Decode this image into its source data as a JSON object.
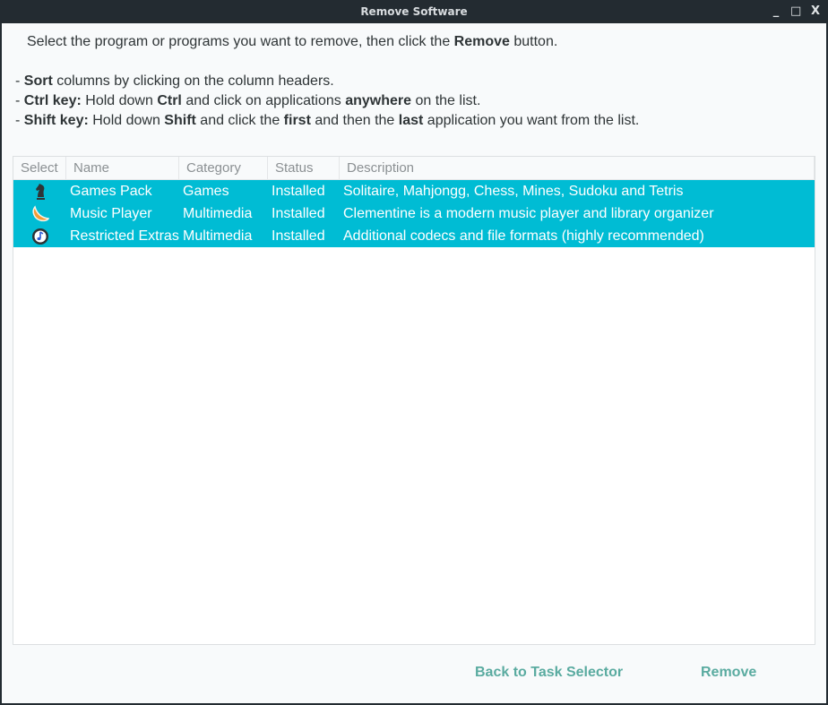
{
  "window": {
    "title": "Remove Software",
    "controls": {
      "minimize": "_",
      "maximize": "□",
      "close": "X"
    }
  },
  "intro": {
    "before": "Select the program or programs you want to remove, then click the ",
    "bold": "Remove",
    "after": " button."
  },
  "rules": [
    {
      "parts": [
        {
          "t": "- "
        },
        {
          "b": "Sort"
        },
        {
          "t": " columns by clicking on the column headers."
        }
      ]
    },
    {
      "parts": [
        {
          "t": "- "
        },
        {
          "b": "Ctrl key:"
        },
        {
          "t": " Hold down "
        },
        {
          "b": "Ctrl"
        },
        {
          "t": " and click on applications "
        },
        {
          "b": "anywhere"
        },
        {
          "t": " on the list."
        }
      ]
    },
    {
      "parts": [
        {
          "t": "- "
        },
        {
          "b": "Shift key:"
        },
        {
          "t": " Hold down "
        },
        {
          "b": "Shift"
        },
        {
          "t": " and click the "
        },
        {
          "b": "first"
        },
        {
          "t": " and then the "
        },
        {
          "b": "last"
        },
        {
          "t": " application you want from the list."
        }
      ]
    }
  ],
  "table": {
    "columns": [
      "Select",
      "Name",
      "Category",
      "Status",
      "Description"
    ],
    "rows": [
      {
        "icon": "chess-knight-icon",
        "name": "Games Pack",
        "category": "Games",
        "status": "Installed",
        "description": "Solitaire, Mahjongg, Chess, Mines, Sudoku and Tetris",
        "selected": true
      },
      {
        "icon": "clementine-icon",
        "name": "Music Player",
        "category": "Multimedia",
        "status": "Installed",
        "description": "Clementine is a modern music player and library organizer",
        "selected": true
      },
      {
        "icon": "music-note-icon",
        "name": "Restricted Extras",
        "category": "Multimedia",
        "status": "Installed",
        "description": "Additional codecs and file formats (highly recommended)",
        "selected": true
      }
    ]
  },
  "buttons": {
    "back": "Back to Task Selector",
    "remove": "Remove"
  },
  "colors": {
    "selection": "#00bcd4",
    "button_text": "#5aaba0",
    "titlebar": "#232b31"
  }
}
